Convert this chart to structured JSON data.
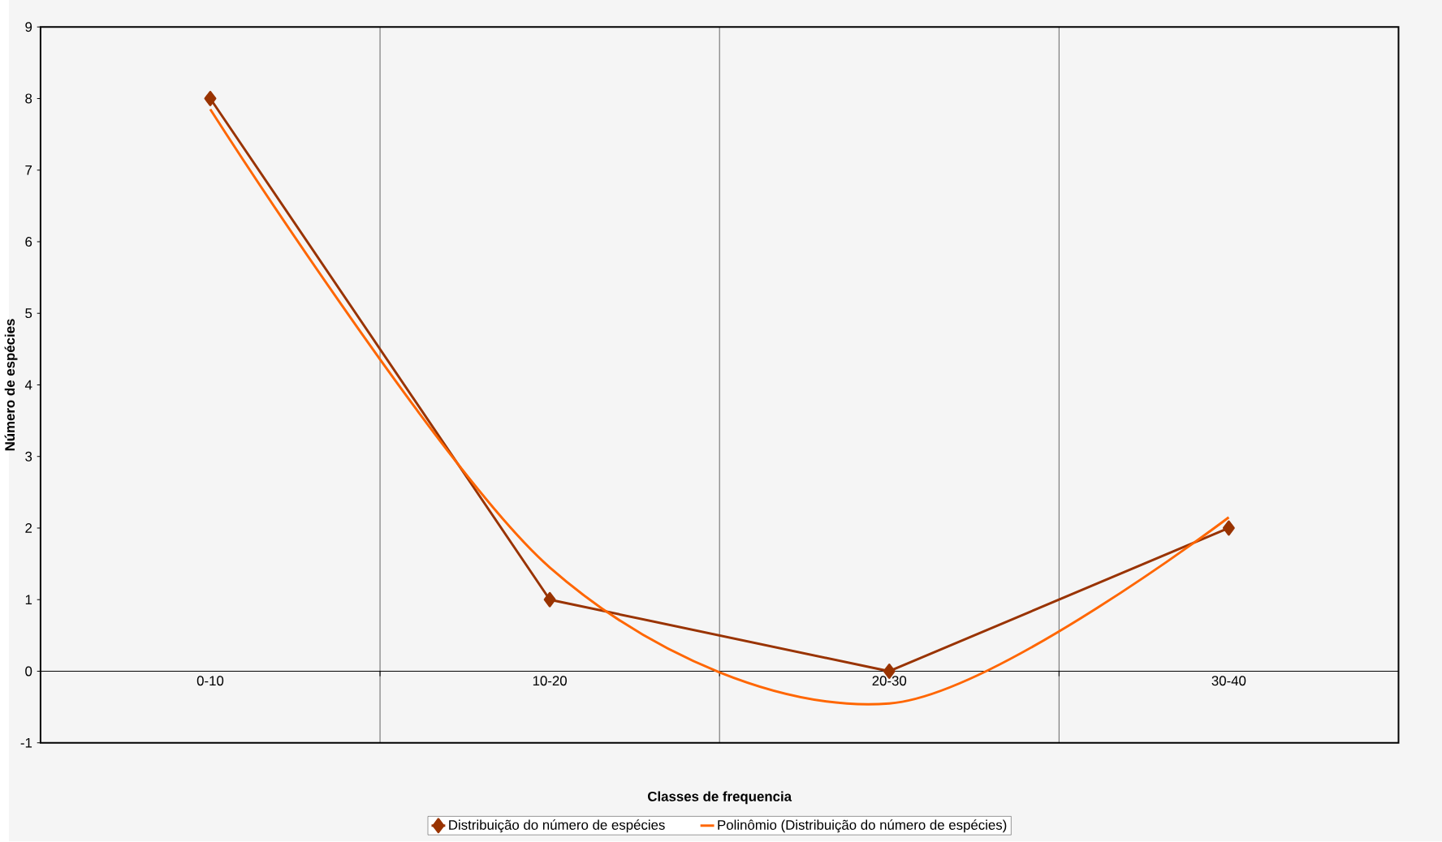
{
  "chart_data": {
    "type": "line",
    "xlabel": "Classes de frequencia",
    "ylabel": "Número de espécies",
    "categories": [
      "0-10",
      "10-20",
      "20-30",
      "30-40"
    ],
    "ylim": [
      -1,
      9
    ],
    "yticks": [
      -1,
      0,
      1,
      2,
      3,
      4,
      5,
      6,
      7,
      8,
      9
    ],
    "grid": "x",
    "legend": "bottom",
    "series": [
      {
        "name": "Distribuição do número de espécies",
        "color": "#993300",
        "values": [
          8,
          1,
          0,
          2
        ],
        "marker": "diamond"
      },
      {
        "name": "Polinômio (Distribuição do número de espécies)",
        "type": "line",
        "color": "#ff6600",
        "marker": "none",
        "values": [
          7.85,
          1.45,
          -0.45,
          2.15
        ]
      }
    ]
  }
}
